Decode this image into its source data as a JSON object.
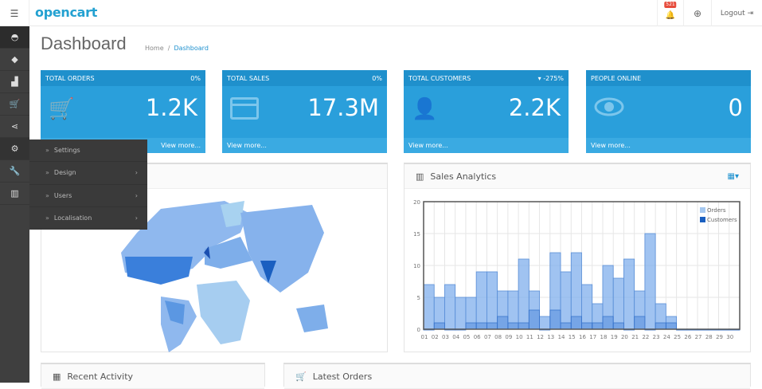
{
  "header": {
    "logo": "opencart",
    "notification_count": "521",
    "logout_label": "Logout"
  },
  "sidebar": {
    "icons": [
      "dashboard-icon",
      "tag-icon",
      "puzzle-icon",
      "cart-icon",
      "share-icon",
      "gear-icon",
      "wrench-icon",
      "bar-chart-icon"
    ]
  },
  "dropdown": {
    "items": [
      {
        "label": "Settings",
        "has_sub": false
      },
      {
        "label": "Design",
        "has_sub": true
      },
      {
        "label": "Users",
        "has_sub": true
      },
      {
        "label": "Localisation",
        "has_sub": true
      }
    ]
  },
  "page": {
    "title": "Dashboard",
    "breadcrumb": [
      "Home",
      "Dashboard"
    ]
  },
  "tiles": [
    {
      "title": "TOTAL ORDERS",
      "change": "0%",
      "value": "1.2K",
      "icon": "cart-icon",
      "footer": "View more..."
    },
    {
      "title": "TOTAL SALES",
      "change": "0%",
      "value": "17.3M",
      "icon": "credit-card-icon",
      "footer": "View more..."
    },
    {
      "title": "TOTAL CUSTOMERS",
      "change": "▾ -275%",
      "value": "2.2K",
      "icon": "user-icon",
      "footer": "View more..."
    },
    {
      "title": "PEOPLE ONLINE",
      "change": "",
      "value": "0",
      "icon": "eye-icon",
      "footer": "View more..."
    }
  ],
  "panels": {
    "sales_analytics": "Sales Analytics",
    "recent_activity": "Recent Activity",
    "latest_orders": "Latest Orders"
  },
  "colors": {
    "accent": "#2a9fdb",
    "sidebar": "#3f3f3f",
    "orders": "#a5c8f0",
    "customers": "#1a5fc0"
  },
  "chart_data": {
    "type": "bar",
    "categories": [
      "01",
      "02",
      "03",
      "04",
      "05",
      "06",
      "07",
      "08",
      "09",
      "10",
      "11",
      "12",
      "13",
      "14",
      "15",
      "16",
      "17",
      "18",
      "19",
      "20",
      "21",
      "22",
      "23",
      "24",
      "25",
      "26",
      "27",
      "28",
      "29",
      "30"
    ],
    "series": [
      {
        "name": "Orders",
        "values": [
          7,
          5,
          7,
          5,
          5,
          9,
          9,
          6,
          6,
          11,
          6,
          2,
          12,
          9,
          12,
          7,
          4,
          10,
          8,
          11,
          6,
          15,
          4,
          2,
          0,
          0,
          0,
          0,
          0,
          0
        ]
      },
      {
        "name": "Customers",
        "values": [
          0,
          1,
          0,
          0,
          1,
          1,
          1,
          2,
          1,
          1,
          3,
          0,
          3,
          1,
          2,
          1,
          1,
          2,
          1,
          0,
          2,
          0,
          1,
          1,
          0,
          0,
          0,
          0,
          0,
          0
        ]
      }
    ],
    "yticks": [
      0,
      5,
      10,
      15,
      20
    ],
    "ylim": [
      0,
      20
    ],
    "grid": true,
    "legend": "top-right"
  }
}
